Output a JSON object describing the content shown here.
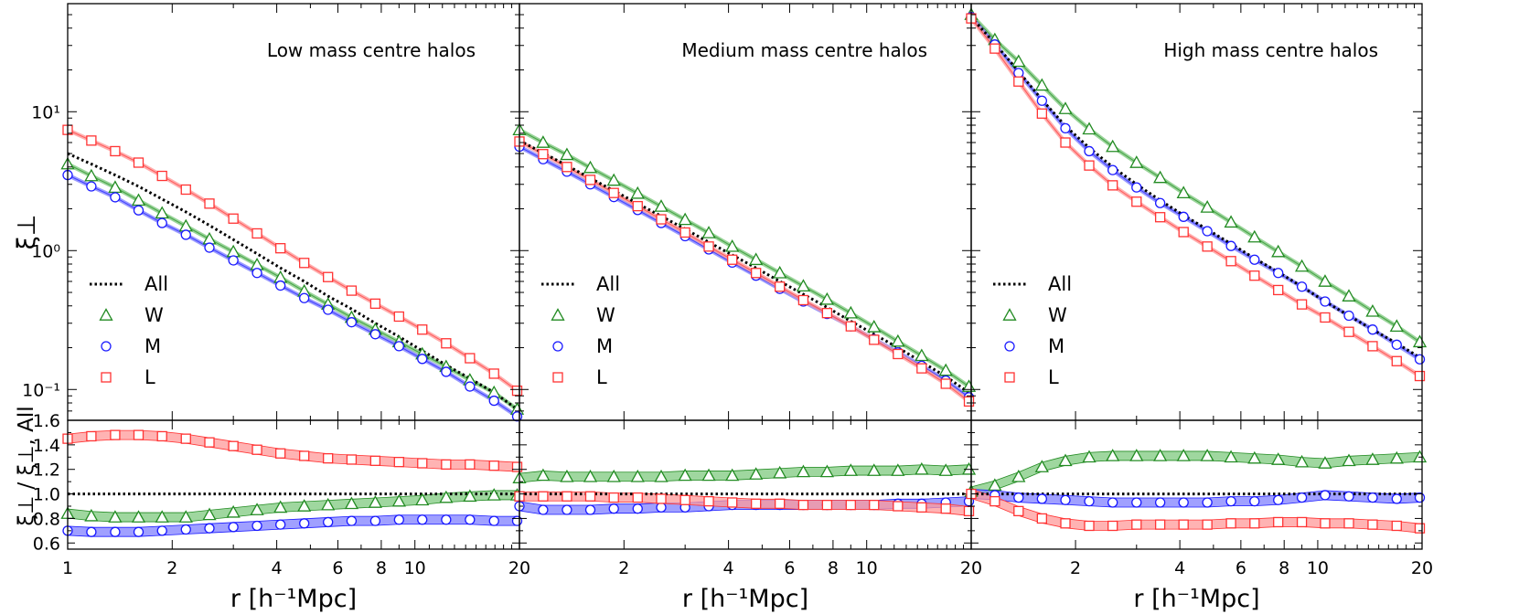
{
  "chart_data": {
    "type": "line",
    "xlabel": "r [h⁻¹Mpc]",
    "ylabel_top": "ξ⊥",
    "ylabel_bottom": "ξ⊥ / ξ⊥, All",
    "xscale": "log",
    "xlim": [
      1,
      20
    ],
    "ylim_top": [
      0.06,
      60
    ],
    "yscale_top": "log",
    "ylim_bottom": [
      0.55,
      1.6
    ],
    "x_ticks": [
      "1",
      "2",
      "4",
      "6",
      "8",
      "10",
      "20"
    ],
    "y_ticks_top": [
      "10⁻¹",
      "10⁰",
      "10¹"
    ],
    "y_ticks_bottom": [
      "0.6",
      "0.8",
      "1.0",
      "1.2",
      "1.4",
      "1.6"
    ],
    "legend": {
      "placement": "lower-left",
      "entries": [
        {
          "label": "All",
          "marker": "dotted-line",
          "color": "#000000"
        },
        {
          "label": "W",
          "marker": "triangle",
          "color": "#228b22"
        },
        {
          "label": "M",
          "marker": "circle",
          "color": "#1a1aff"
        },
        {
          "label": "L",
          "marker": "square",
          "color": "#ff3333"
        }
      ]
    },
    "x": [
      1.0,
      1.17,
      1.37,
      1.6,
      1.87,
      2.19,
      2.56,
      3.0,
      3.51,
      4.1,
      4.8,
      5.62,
      6.57,
      7.69,
      9.0,
      10.5,
      12.3,
      14.4,
      16.9,
      19.7
    ],
    "panels": [
      {
        "title": "Low mass centre halos",
        "top": {
          "All": [
            5.0,
            4.2,
            3.5,
            2.9,
            2.35,
            1.9,
            1.52,
            1.2,
            0.95,
            0.75,
            0.6,
            0.47,
            0.38,
            0.3,
            0.24,
            0.19,
            0.15,
            0.12,
            0.095,
            0.072
          ],
          "W": [
            4.2,
            3.45,
            2.85,
            2.3,
            1.86,
            1.5,
            1.21,
            0.98,
            0.79,
            0.64,
            0.51,
            0.41,
            0.33,
            0.27,
            0.22,
            0.18,
            0.146,
            0.117,
            0.095,
            0.072
          ],
          "M": [
            3.5,
            2.9,
            2.42,
            1.95,
            1.58,
            1.3,
            1.05,
            0.85,
            0.69,
            0.56,
            0.455,
            0.375,
            0.305,
            0.25,
            0.205,
            0.166,
            0.134,
            0.105,
            0.083,
            0.064
          ],
          "L": [
            7.4,
            6.2,
            5.2,
            4.3,
            3.45,
            2.75,
            2.18,
            1.7,
            1.33,
            1.04,
            0.815,
            0.645,
            0.515,
            0.415,
            0.335,
            0.27,
            0.215,
            0.168,
            0.13,
            0.098
          ]
        },
        "bottom": {
          "W": [
            0.84,
            0.82,
            0.81,
            0.81,
            0.81,
            0.81,
            0.83,
            0.85,
            0.87,
            0.89,
            0.9,
            0.91,
            0.92,
            0.93,
            0.94,
            0.95,
            0.97,
            0.98,
            0.99,
            0.99
          ],
          "M": [
            0.7,
            0.69,
            0.69,
            0.69,
            0.7,
            0.71,
            0.72,
            0.73,
            0.74,
            0.75,
            0.76,
            0.77,
            0.78,
            0.78,
            0.79,
            0.79,
            0.79,
            0.79,
            0.78,
            0.78
          ],
          "L": [
            1.45,
            1.47,
            1.48,
            1.48,
            1.47,
            1.45,
            1.42,
            1.39,
            1.36,
            1.33,
            1.31,
            1.29,
            1.28,
            1.27,
            1.26,
            1.25,
            1.24,
            1.24,
            1.23,
            1.22
          ]
        }
      },
      {
        "title": "Medium mass centre halos",
        "top": {
          "All": [
            6.2,
            5.05,
            4.1,
            3.32,
            2.7,
            2.18,
            1.77,
            1.43,
            1.15,
            0.93,
            0.75,
            0.6,
            0.485,
            0.39,
            0.31,
            0.25,
            0.2,
            0.158,
            0.124,
            0.095
          ],
          "W": [
            7.4,
            6.0,
            4.9,
            3.95,
            3.2,
            2.58,
            2.08,
            1.67,
            1.34,
            1.07,
            0.86,
            0.69,
            0.555,
            0.445,
            0.355,
            0.282,
            0.222,
            0.175,
            0.137,
            0.105
          ],
          "M": [
            5.6,
            4.55,
            3.7,
            3.0,
            2.43,
            1.96,
            1.58,
            1.27,
            1.02,
            0.82,
            0.66,
            0.53,
            0.43,
            0.35,
            0.285,
            0.23,
            0.185,
            0.148,
            0.116,
            0.088
          ],
          "L": [
            6.1,
            4.95,
            4.0,
            3.23,
            2.6,
            2.09,
            1.68,
            1.35,
            1.07,
            0.86,
            0.69,
            0.55,
            0.44,
            0.355,
            0.285,
            0.228,
            0.18,
            0.142,
            0.11,
            0.082
          ]
        },
        "bottom": {
          "W": [
            1.13,
            1.15,
            1.14,
            1.14,
            1.14,
            1.14,
            1.14,
            1.15,
            1.15,
            1.15,
            1.16,
            1.17,
            1.18,
            1.18,
            1.19,
            1.19,
            1.19,
            1.2,
            1.19,
            1.2
          ],
          "M": [
            0.9,
            0.87,
            0.87,
            0.87,
            0.88,
            0.88,
            0.89,
            0.89,
            0.9,
            0.91,
            0.91,
            0.91,
            0.91,
            0.91,
            0.91,
            0.91,
            0.92,
            0.92,
            0.93,
            0.94
          ],
          "L": [
            0.98,
            0.98,
            0.98,
            0.98,
            0.97,
            0.97,
            0.96,
            0.95,
            0.94,
            0.93,
            0.92,
            0.92,
            0.91,
            0.91,
            0.91,
            0.91,
            0.9,
            0.89,
            0.88,
            0.86
          ]
        }
      },
      {
        "title": "High mass centre halos",
        "top": {
          "All": [
            48.0,
            31.0,
            19.5,
            12.2,
            7.9,
            5.5,
            4.0,
            3.0,
            2.3,
            1.8,
            1.42,
            1.12,
            0.88,
            0.7,
            0.55,
            0.43,
            0.34,
            0.27,
            0.215,
            0.17
          ],
          "W": [
            50.0,
            33.0,
            23.0,
            15.5,
            10.5,
            7.5,
            5.6,
            4.3,
            3.35,
            2.6,
            2.05,
            1.6,
            1.25,
            0.98,
            0.77,
            0.6,
            0.47,
            0.365,
            0.285,
            0.22
          ],
          "M": [
            48.0,
            30.5,
            19.0,
            12.0,
            7.6,
            5.2,
            3.8,
            2.85,
            2.2,
            1.75,
            1.38,
            1.08,
            0.86,
            0.69,
            0.55,
            0.43,
            0.34,
            0.27,
            0.21,
            0.165
          ],
          "L": [
            47.0,
            28.5,
            16.5,
            9.7,
            6.0,
            4.1,
            2.95,
            2.25,
            1.74,
            1.36,
            1.07,
            0.84,
            0.66,
            0.52,
            0.41,
            0.33,
            0.26,
            0.205,
            0.16,
            0.125
          ]
        },
        "bottom": {
          "W": [
            1.02,
            1.07,
            1.14,
            1.22,
            1.27,
            1.3,
            1.31,
            1.31,
            1.31,
            1.31,
            1.31,
            1.3,
            1.29,
            1.28,
            1.26,
            1.25,
            1.27,
            1.28,
            1.29,
            1.3
          ],
          "M": [
            1.0,
            0.99,
            0.97,
            0.96,
            0.95,
            0.94,
            0.93,
            0.93,
            0.93,
            0.93,
            0.93,
            0.94,
            0.94,
            0.95,
            0.97,
            0.99,
            0.98,
            0.97,
            0.96,
            0.97
          ],
          "L": [
            1.0,
            0.94,
            0.86,
            0.8,
            0.76,
            0.74,
            0.74,
            0.75,
            0.75,
            0.75,
            0.75,
            0.76,
            0.76,
            0.77,
            0.77,
            0.76,
            0.76,
            0.75,
            0.74,
            0.72
          ]
        }
      }
    ]
  }
}
